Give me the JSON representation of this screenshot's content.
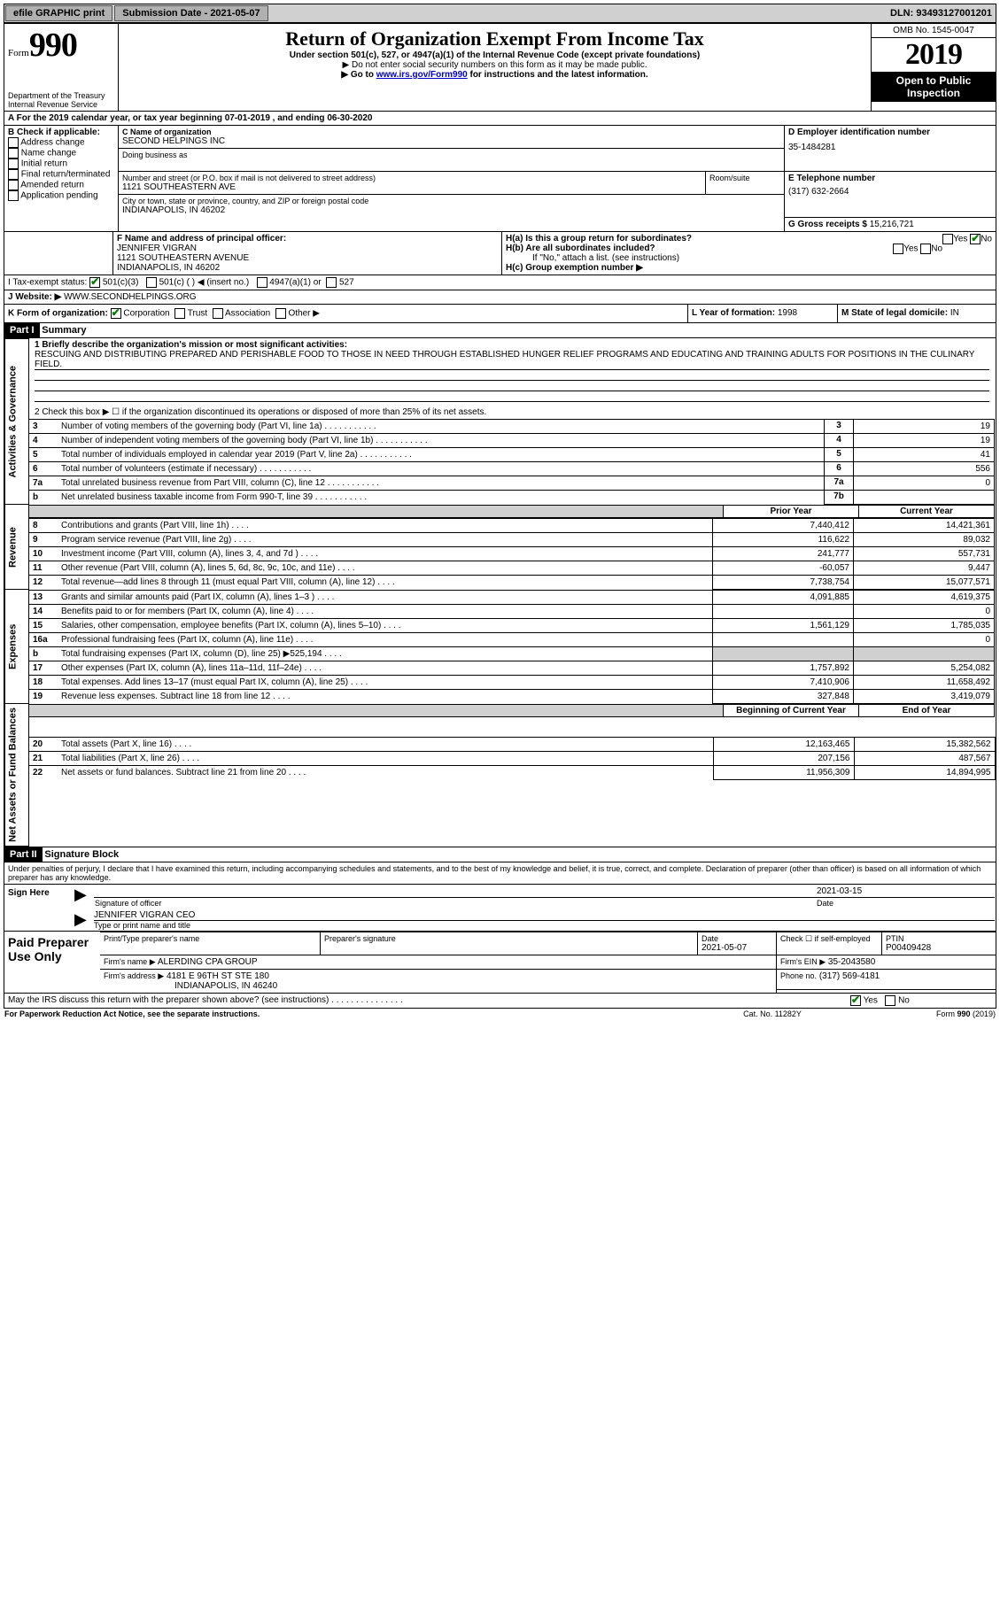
{
  "topbar": {
    "efile": "efile GRAPHIC print",
    "submission": "Submission Date - 2021-05-07",
    "dln": "DLN: 93493127001201"
  },
  "header": {
    "form_label": "Form",
    "form_num": "990",
    "dept": "Department of the Treasury\nInternal Revenue Service",
    "title": "Return of Organization Exempt From Income Tax",
    "subtitle": "Under section 501(c), 527, or 4947(a)(1) of the Internal Revenue Code (except private foundations)",
    "warn1": "▶ Do not enter social security numbers on this form as it may be made public.",
    "warn2_pre": "▶ Go to ",
    "warn2_link": "www.irs.gov/Form990",
    "warn2_post": " for instructions and the latest information.",
    "omb": "OMB No. 1545-0047",
    "year": "2019",
    "inspection": "Open to Public Inspection"
  },
  "lineA": {
    "text": "A For the 2019 calendar year, or tax year beginning 07-01-2019   , and ending 06-30-2020"
  },
  "boxB": {
    "label": "B Check if applicable:",
    "opts": [
      "Address change",
      "Name change",
      "Initial return",
      "Final return/terminated",
      "Amended return",
      "Application pending"
    ]
  },
  "boxC": {
    "name_label": "C Name of organization",
    "name": "SECOND HELPINGS INC",
    "dba_label": "Doing business as",
    "addr_label": "Number and street (or P.O. box if mail is not delivered to street address)",
    "room_label": "Room/suite",
    "addr": "1121 SOUTHEASTERN AVE",
    "city_label": "City or town, state or province, country, and ZIP or foreign postal code",
    "city": "INDIANAPOLIS, IN  46202"
  },
  "boxD": {
    "label": "D Employer identification number",
    "val": "35-1484281"
  },
  "boxE": {
    "label": "E Telephone number",
    "val": "(317) 632-2664"
  },
  "boxG": {
    "label": "G Gross receipts $",
    "val": "15,216,721"
  },
  "boxF": {
    "label": "F  Name and address of principal officer:",
    "name": "JENNIFER VIGRAN",
    "addr1": "1121 SOUTHEASTERN AVENUE",
    "addr2": "INDIANAPOLIS, IN  46202"
  },
  "boxH": {
    "ha": "H(a)  Is this a group return for subordinates?",
    "hb": "H(b)  Are all subordinates included?",
    "hb_note": "If \"No,\" attach a list. (see instructions)",
    "hc": "H(c)  Group exemption number ▶",
    "yes": "Yes",
    "no": "No"
  },
  "boxI": {
    "label": "I   Tax-exempt status:",
    "c3": "501(c)(3)",
    "c": "501(c) (  ) ◀ (insert no.)",
    "a1": "4947(a)(1) or",
    "s527": "527"
  },
  "boxJ": {
    "label": "J   Website: ▶",
    "val": "WWW.SECONDHELPINGS.ORG"
  },
  "boxK": {
    "label": "K Form of organization:",
    "corp": "Corporation",
    "trust": "Trust",
    "assoc": "Association",
    "other": "Other ▶"
  },
  "boxL": {
    "label": "L Year of formation:",
    "val": "1998"
  },
  "boxM": {
    "label": "M State of legal domicile:",
    "val": "IN"
  },
  "part1": {
    "hdr": "Part I",
    "title": "Summary",
    "l1_label": "1  Briefly describe the organization's mission or most significant activities:",
    "l1_text": "RESCUING AND DISTRIBUTING PREPARED AND PERISHABLE FOOD TO THOSE IN NEED THROUGH ESTABLISHED HUNGER RELIEF PROGRAMS AND EDUCATING AND TRAINING ADULTS FOR POSITIONS IN THE CULINARY FIELD.",
    "l2": "2   Check this box ▶ ☐ if the organization discontinued its operations or disposed of more than 25% of its net assets.",
    "rows_gov": [
      {
        "n": "3",
        "t": "Number of voting members of the governing body (Part VI, line 1a)",
        "c": "3",
        "v": "19"
      },
      {
        "n": "4",
        "t": "Number of independent voting members of the governing body (Part VI, line 1b)",
        "c": "4",
        "v": "19"
      },
      {
        "n": "5",
        "t": "Total number of individuals employed in calendar year 2019 (Part V, line 2a)",
        "c": "5",
        "v": "41"
      },
      {
        "n": "6",
        "t": "Total number of volunteers (estimate if necessary)",
        "c": "6",
        "v": "556"
      },
      {
        "n": "7a",
        "t": "Total unrelated business revenue from Part VIII, column (C), line 12",
        "c": "7a",
        "v": "0"
      },
      {
        "n": "b",
        "t": "Net unrelated business taxable income from Form 990-T, line 39",
        "c": "7b",
        "v": ""
      }
    ],
    "prior_hdr": "Prior Year",
    "curr_hdr": "Current Year",
    "rows_rev": [
      {
        "n": "8",
        "t": "Contributions and grants (Part VIII, line 1h)",
        "p": "7,440,412",
        "c": "14,421,361"
      },
      {
        "n": "9",
        "t": "Program service revenue (Part VIII, line 2g)",
        "p": "116,622",
        "c": "89,032"
      },
      {
        "n": "10",
        "t": "Investment income (Part VIII, column (A), lines 3, 4, and 7d )",
        "p": "241,777",
        "c": "557,731"
      },
      {
        "n": "11",
        "t": "Other revenue (Part VIII, column (A), lines 5, 6d, 8c, 9c, 10c, and 11e)",
        "p": "-60,057",
        "c": "9,447"
      },
      {
        "n": "12",
        "t": "Total revenue—add lines 8 through 11 (must equal Part VIII, column (A), line 12)",
        "p": "7,738,754",
        "c": "15,077,571"
      }
    ],
    "rows_exp": [
      {
        "n": "13",
        "t": "Grants and similar amounts paid (Part IX, column (A), lines 1–3 )",
        "p": "4,091,885",
        "c": "4,619,375"
      },
      {
        "n": "14",
        "t": "Benefits paid to or for members (Part IX, column (A), line 4)",
        "p": "",
        "c": "0"
      },
      {
        "n": "15",
        "t": "Salaries, other compensation, employee benefits (Part IX, column (A), lines 5–10)",
        "p": "1,561,129",
        "c": "1,785,035"
      },
      {
        "n": "16a",
        "t": "Professional fundraising fees (Part IX, column (A), line 11e)",
        "p": "",
        "c": "0"
      },
      {
        "n": "b",
        "t": "Total fundraising expenses (Part IX, column (D), line 25) ▶525,194",
        "p": "SHADE",
        "c": "SHADE"
      },
      {
        "n": "17",
        "t": "Other expenses (Part IX, column (A), lines 11a–11d, 11f–24e)",
        "p": "1,757,892",
        "c": "5,254,082"
      },
      {
        "n": "18",
        "t": "Total expenses. Add lines 13–17 (must equal Part IX, column (A), line 25)",
        "p": "7,410,906",
        "c": "11,658,492"
      },
      {
        "n": "19",
        "t": "Revenue less expenses. Subtract line 18 from line 12",
        "p": "327,848",
        "c": "3,419,079"
      }
    ],
    "begin_hdr": "Beginning of Current Year",
    "end_hdr": "End of Year",
    "rows_net": [
      {
        "n": "20",
        "t": "Total assets (Part X, line 16)",
        "p": "12,163,465",
        "c": "15,382,562"
      },
      {
        "n": "21",
        "t": "Total liabilities (Part X, line 26)",
        "p": "207,156",
        "c": "487,567"
      },
      {
        "n": "22",
        "t": "Net assets or fund balances. Subtract line 21 from line 20",
        "p": "11,956,309",
        "c": "14,894,995"
      }
    ],
    "sidebar_gov": "Activities & Governance",
    "sidebar_rev": "Revenue",
    "sidebar_exp": "Expenses",
    "sidebar_net": "Net Assets or Fund Balances"
  },
  "part2": {
    "hdr": "Part II",
    "title": "Signature Block",
    "perjury": "Under penalties of perjury, I declare that I have examined this return, including accompanying schedules and statements, and to the best of my knowledge and belief, it is true, correct, and complete. Declaration of preparer (other than officer) is based on all information of which preparer has any knowledge.",
    "sign_here": "Sign Here",
    "sig_officer": "Signature of officer",
    "sig_date_label": "Date",
    "sig_date": "2021-03-15",
    "officer_name": "JENNIFER VIGRAN  CEO",
    "officer_type": "Type or print name and title",
    "paid": "Paid Preparer Use Only",
    "prep_name_lbl": "Print/Type preparer's name",
    "prep_sig_lbl": "Preparer's signature",
    "prep_date_lbl": "Date",
    "prep_date": "2021-05-07",
    "check_if": "Check ☐ if self-employed",
    "ptin_lbl": "PTIN",
    "ptin": "P00409428",
    "firm_name_lbl": "Firm's name    ▶",
    "firm_name": "ALERDING CPA GROUP",
    "firm_ein_lbl": "Firm's EIN ▶",
    "firm_ein": "35-2043580",
    "firm_addr_lbl": "Firm's address ▶",
    "firm_addr1": "4181 E 96TH ST STE 180",
    "firm_addr2": "INDIANAPOLIS, IN  46240",
    "phone_lbl": "Phone no.",
    "phone": "(317) 569-4181",
    "discuss": "May the IRS discuss this return with the preparer shown above? (see instructions)",
    "yes": "Yes",
    "no": "No"
  },
  "footer": {
    "pra": "For Paperwork Reduction Act Notice, see the separate instructions.",
    "cat": "Cat. No. 11282Y",
    "form": "Form 990 (2019)"
  }
}
